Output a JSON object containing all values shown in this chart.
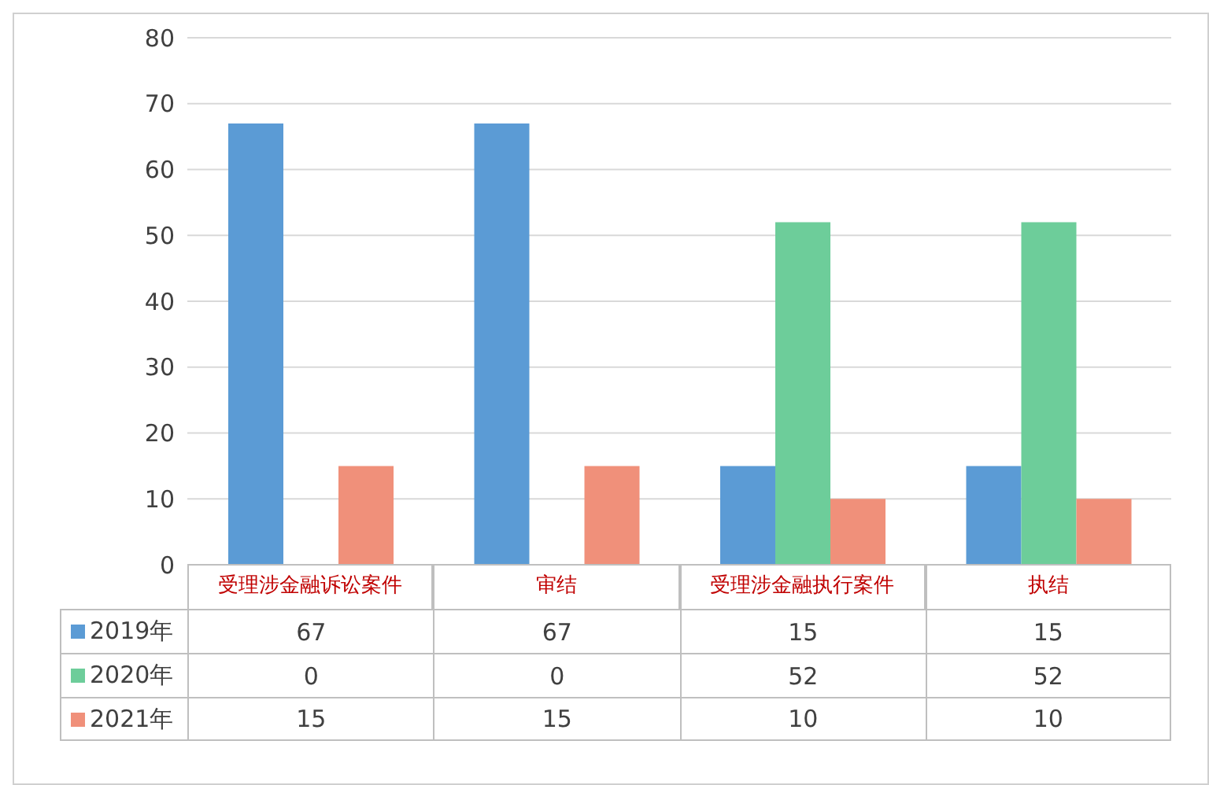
{
  "chart_data": {
    "type": "bar",
    "categories": [
      "受理涉金融诉讼案件",
      "审结",
      "受理涉金融执行案件",
      "执结"
    ],
    "series": [
      {
        "name": "2019年",
        "color": "#5b9bd5",
        "values": [
          67,
          67,
          15,
          15
        ]
      },
      {
        "name": "2020年",
        "color": "#6dcd9a",
        "values": [
          0,
          0,
          52,
          52
        ]
      },
      {
        "name": "2021年",
        "color": "#f0907a",
        "values": [
          15,
          15,
          10,
          10
        ]
      }
    ],
    "ylim": [
      0,
      80
    ],
    "yticks": [
      0,
      10,
      20,
      30,
      40,
      50,
      60,
      70,
      80
    ],
    "grid": "y",
    "legend": "bottom",
    "data_labels": true
  }
}
